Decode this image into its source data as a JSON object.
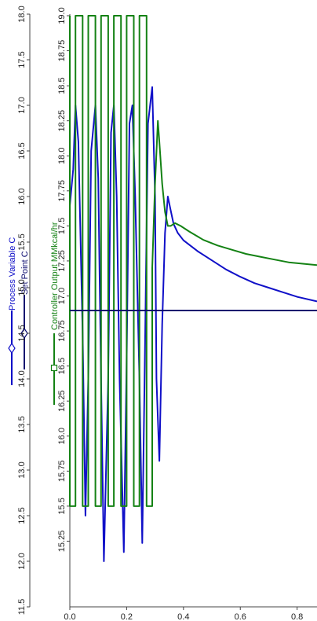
{
  "chart_data": {
    "type": "line",
    "title": "",
    "x_axis": {
      "range": [
        0,
        0.87
      ],
      "ticks": [
        0.0,
        0.2,
        0.4,
        0.6,
        0.8
      ],
      "tick_labels": [
        "0.0",
        "0.2",
        "0.4",
        "0.6",
        "0.8"
      ]
    },
    "y_axis_left": {
      "range": [
        11.5,
        18.0
      ],
      "ticks": [
        11.5,
        12.0,
        12.5,
        13.0,
        13.5,
        14.0,
        14.5,
        15.0,
        15.5,
        16.0,
        16.5,
        17.0,
        17.5,
        18.0
      ],
      "tick_labels": [
        "11.5",
        "12.0",
        "12.5",
        "13.0",
        "13.5",
        "14.0",
        "14.5",
        "15.0",
        "15.5",
        "16.0",
        "16.5",
        "17.0",
        "17.5",
        "18.0"
      ]
    },
    "y_axis_right": {
      "range": [
        15.0,
        19.0
      ],
      "ticks": [
        15.25,
        15.5,
        15.75,
        16.0,
        16.25,
        16.5,
        16.75,
        17.0,
        17.25,
        17.5,
        17.75,
        18.0,
        18.25,
        18.5,
        18.75,
        19.0
      ],
      "tick_labels": [
        "15.25",
        "15.5",
        "15.75",
        "16.0",
        "16.25",
        "16.5",
        "16.75",
        "17.0",
        "17.25",
        "17.5",
        "17.75",
        "18.0",
        "18.25",
        "18.5",
        "18.75",
        "19.0"
      ]
    },
    "series": [
      {
        "name": "Process Variable C",
        "color": "#1010c8",
        "axis": "left",
        "marker": "diamond",
        "x": [
          0.0,
          0.012,
          0.02,
          0.03,
          0.045,
          0.055,
          0.065,
          0.075,
          0.09,
          0.1,
          0.11,
          0.12,
          0.135,
          0.145,
          0.155,
          0.165,
          0.175,
          0.19,
          0.2,
          0.21,
          0.22,
          0.23,
          0.245,
          0.255,
          0.265,
          0.275,
          0.29,
          0.3,
          0.305,
          0.315,
          0.325,
          0.335,
          0.345,
          0.355,
          0.365,
          0.38,
          0.4,
          0.45,
          0.5,
          0.55,
          0.6,
          0.65,
          0.7,
          0.75,
          0.8,
          0.87
        ],
        "y": [
          15.9,
          16.3,
          17.0,
          16.6,
          14.5,
          12.5,
          14.0,
          16.5,
          17.0,
          16.2,
          14.0,
          12.0,
          14.0,
          16.7,
          17.0,
          16.0,
          14.0,
          12.1,
          14.2,
          16.8,
          17.0,
          16.0,
          14.0,
          12.2,
          14.4,
          16.8,
          17.2,
          16.0,
          14.0,
          13.1,
          14.6,
          15.6,
          16.0,
          15.85,
          15.7,
          15.6,
          15.52,
          15.4,
          15.3,
          15.2,
          15.12,
          15.05,
          15.0,
          14.95,
          14.9,
          14.85
        ]
      },
      {
        "name": "Set Point C",
        "color": "#0a0a6e",
        "axis": "left",
        "marker": "diamond",
        "x": [
          0.0,
          0.87
        ],
        "y": [
          14.75,
          14.75
        ]
      },
      {
        "name": "Controller Output MMkcal/hr",
        "color": "#148214",
        "axis": "right",
        "marker": "square",
        "x": [
          0.0,
          0.0,
          0.02,
          0.02,
          0.045,
          0.045,
          0.065,
          0.065,
          0.09,
          0.09,
          0.11,
          0.11,
          0.135,
          0.135,
          0.155,
          0.155,
          0.18,
          0.18,
          0.2,
          0.2,
          0.225,
          0.225,
          0.245,
          0.245,
          0.27,
          0.27,
          0.29,
          0.29,
          0.3,
          0.31,
          0.315,
          0.325,
          0.335,
          0.345,
          0.355,
          0.37,
          0.39,
          0.42,
          0.47,
          0.52,
          0.57,
          0.62,
          0.67,
          0.72,
          0.77,
          0.82,
          0.87
        ],
        "y": [
          19.0,
          15.5,
          15.5,
          19.0,
          19.0,
          15.5,
          15.5,
          19.0,
          19.0,
          15.5,
          15.5,
          19.0,
          19.0,
          15.5,
          15.5,
          19.0,
          19.0,
          15.5,
          15.5,
          19.0,
          19.0,
          15.5,
          15.5,
          19.0,
          19.0,
          15.5,
          15.5,
          17.2,
          17.8,
          18.25,
          18.1,
          17.8,
          17.6,
          17.5,
          17.5,
          17.52,
          17.5,
          17.46,
          17.4,
          17.36,
          17.33,
          17.3,
          17.28,
          17.26,
          17.24,
          17.23,
          17.22
        ]
      }
    ]
  }
}
